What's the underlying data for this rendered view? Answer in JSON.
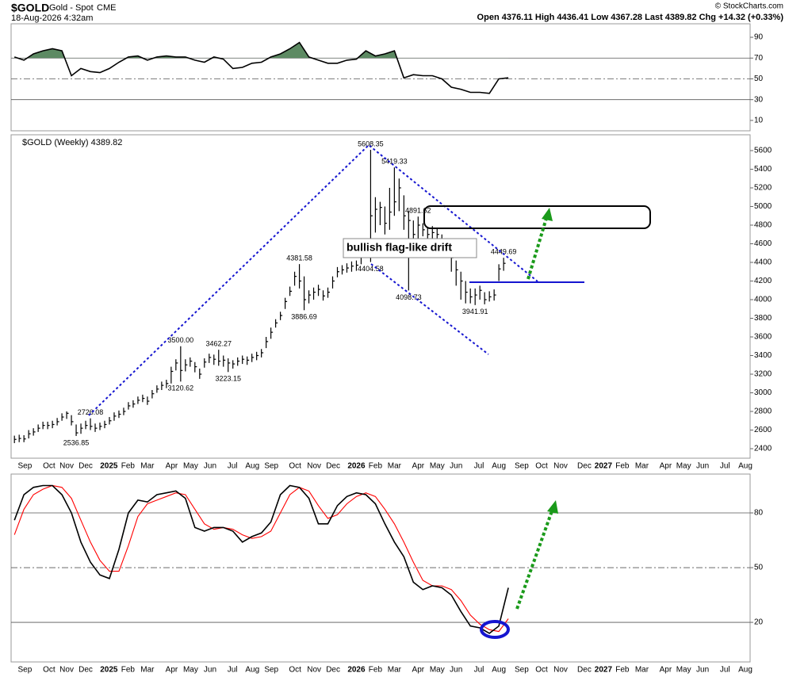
{
  "header": {
    "symbol": "$GOLD",
    "name": "Gold - Spot",
    "exchange": "CME",
    "datetime": "18-Aug-2026 4:32am",
    "quote": "Open 4376.11  High 4436.41  Low 4367.28  Last 4389.82  Chg +14.32 (+0.33%)",
    "copyright": "© StockCharts.com"
  },
  "chart_data": [
    {
      "type": "line",
      "xlim": [
        -0.7,
        154.9
      ],
      "ylim": [
        0,
        103
      ],
      "yticks": [
        10,
        30,
        50,
        70,
        90
      ],
      "ref_lines": [
        {
          "value": 70,
          "dash": false
        },
        {
          "value": 50,
          "dash": true
        },
        {
          "value": 30,
          "dash": false
        }
      ],
      "fill_above": 70,
      "fill_color": "#5d8a63",
      "x": [
        0,
        2,
        4,
        6,
        8,
        10,
        12,
        14,
        16,
        18,
        20,
        22,
        24,
        26,
        28,
        30,
        32,
        34,
        36,
        38,
        40,
        42,
        44,
        46,
        48,
        50,
        52,
        54,
        56,
        58,
        60,
        62,
        64,
        66,
        68,
        70,
        72,
        74,
        76,
        78,
        80,
        82,
        84,
        86,
        88,
        90,
        92,
        94,
        96,
        98,
        100,
        102,
        104
      ],
      "series": [
        {
          "color": "#000000",
          "values": [
            71,
            68,
            74,
            77,
            79,
            77,
            53,
            60,
            57,
            56,
            60,
            66,
            71,
            72,
            68,
            71,
            72,
            71,
            71,
            68,
            66,
            71,
            69,
            60,
            61,
            65,
            66,
            71,
            74,
            79,
            85,
            71,
            68,
            65,
            65,
            68,
            69,
            77,
            72,
            74,
            77,
            51,
            54,
            53,
            53,
            50,
            42,
            40,
            37,
            37,
            36,
            50,
            51
          ]
        }
      ]
    },
    {
      "type": "ohlc",
      "title": "$GOLD (Weekly) 4389.82",
      "color": "#000000",
      "xlim": [
        -0.7,
        154.9
      ],
      "ylim": [
        2298,
        5770
      ],
      "yticks": [
        2400,
        2600,
        2800,
        3000,
        3200,
        3400,
        3600,
        3800,
        4000,
        4200,
        4400,
        4600,
        4800,
        5000,
        5200,
        5400,
        5600
      ],
      "xticks": [
        {
          "value": 2.2,
          "label": "Sep"
        },
        {
          "value": 7.3,
          "label": "Oct"
        },
        {
          "value": 11.0,
          "label": "Nov"
        },
        {
          "value": 15.0,
          "label": "Dec"
        },
        {
          "value": 19.9,
          "label": "2025"
        },
        {
          "value": 23.9,
          "label": "Feb"
        },
        {
          "value": 28.0,
          "label": "Mar"
        },
        {
          "value": 33.1,
          "label": "Apr"
        },
        {
          "value": 37.1,
          "label": "May"
        },
        {
          "value": 41.2,
          "label": "Jun"
        },
        {
          "value": 45.9,
          "label": "Jul"
        },
        {
          "value": 50.1,
          "label": "Aug"
        },
        {
          "value": 54.1,
          "label": "Sep"
        },
        {
          "value": 59.1,
          "label": "Oct"
        },
        {
          "value": 63.1,
          "label": "Nov"
        },
        {
          "value": 67.1,
          "label": "Dec"
        },
        {
          "value": 72.0,
          "label": "2026"
        },
        {
          "value": 76.0,
          "label": "Feb"
        },
        {
          "value": 80.0,
          "label": "Mar"
        },
        {
          "value": 85.0,
          "label": "Apr"
        },
        {
          "value": 89.0,
          "label": "May"
        },
        {
          "value": 93.0,
          "label": "Jun"
        },
        {
          "value": 97.8,
          "label": "Jul"
        },
        {
          "value": 102.0,
          "label": "Aug"
        },
        {
          "value": 106.8,
          "label": "Sep"
        },
        {
          "value": 111.0,
          "label": "Oct"
        },
        {
          "value": 115.0,
          "label": "Nov"
        },
        {
          "value": 120.0,
          "label": "Dec"
        },
        {
          "value": 124.0,
          "label": "2027"
        },
        {
          "value": 128.0,
          "label": "Feb"
        },
        {
          "value": 132.1,
          "label": "Mar"
        },
        {
          "value": 137.1,
          "label": "Apr"
        },
        {
          "value": 140.9,
          "label": "May"
        },
        {
          "value": 144.9,
          "label": "Jun"
        },
        {
          "value": 149.6,
          "label": "Jul"
        },
        {
          "value": 153.9,
          "label": "Aug"
        }
      ],
      "high": [
        2540,
        2550,
        2545,
        2600,
        2620,
        2660,
        2690,
        2690,
        2700,
        2730,
        2780,
        2800,
        2760,
        2660,
        2670,
        2700,
        2726.08,
        2670,
        2680,
        2700,
        2740,
        2790,
        2810,
        2840,
        2900,
        2920,
        2960,
        2980,
        2960,
        3030,
        3080,
        3120,
        3140,
        3280,
        3360,
        3500,
        3360,
        3380,
        3330,
        3260,
        3370,
        3420,
        3410,
        3462.27,
        3400,
        3370,
        3350,
        3380,
        3400,
        3390,
        3420,
        3440,
        3470,
        3600,
        3700,
        3790,
        3870,
        4020,
        4140,
        4300,
        4381.58,
        4250,
        4100,
        4130,
        4160,
        4100,
        4130,
        4250,
        4350,
        4370,
        4390,
        4410,
        4420,
        4510,
        4620,
        5608.35,
        5100,
        5050,
        5000,
        5200,
        5419.33,
        5300,
        5120,
        4950,
        4850,
        4891.62,
        4820,
        4780,
        4790,
        4770,
        4700,
        4650,
        4550,
        4420,
        4300,
        4200,
        4120,
        4120,
        4150,
        4080,
        4090,
        4110,
        4380,
        4449.69
      ],
      "low": [
        2460,
        2470,
        2470,
        2510,
        2540,
        2580,
        2610,
        2610,
        2620,
        2650,
        2700,
        2720,
        2650,
        2536.85,
        2560,
        2610,
        2600,
        2580,
        2600,
        2620,
        2660,
        2700,
        2730,
        2760,
        2820,
        2840,
        2880,
        2900,
        2870,
        2940,
        3000,
        3030,
        3050,
        3100,
        3240,
        3120.62,
        3230,
        3280,
        3220,
        3150,
        3270,
        3320,
        3300,
        3290,
        3280,
        3223.15,
        3260,
        3290,
        3310,
        3300,
        3330,
        3350,
        3380,
        3480,
        3580,
        3700,
        3780,
        3900,
        4040,
        4150,
        4120,
        3886.69,
        3960,
        4000,
        4040,
        3990,
        4020,
        4120,
        4240,
        4270,
        4290,
        4300,
        4310,
        4380,
        4470,
        4404.58,
        4720,
        4800,
        4700,
        4750,
        4900,
        4950,
        4750,
        4098.73,
        4580,
        4650,
        4680,
        4640,
        4650,
        4620,
        4540,
        4470,
        4300,
        4150,
        4000,
        3960,
        3960,
        3941.91,
        4000,
        3950,
        3980,
        3990,
        4200,
        4310
      ],
      "close": [
        2500,
        2510,
        2505,
        2560,
        2580,
        2620,
        2650,
        2650,
        2660,
        2690,
        2740,
        2780,
        2690,
        2570,
        2620,
        2650,
        2640,
        2620,
        2640,
        2660,
        2700,
        2750,
        2770,
        2800,
        2860,
        2880,
        2920,
        2940,
        2910,
        2990,
        3040,
        3080,
        3100,
        3230,
        3320,
        3240,
        3300,
        3340,
        3280,
        3200,
        3330,
        3380,
        3360,
        3340,
        3350,
        3320,
        3310,
        3340,
        3360,
        3350,
        3380,
        3400,
        3430,
        3550,
        3650,
        3750,
        3830,
        3980,
        4090,
        4250,
        4200,
        4000,
        4050,
        4080,
        4110,
        4040,
        4080,
        4200,
        4300,
        4320,
        4340,
        4360,
        4370,
        4460,
        4550,
        4900,
        4970,
        4990,
        4820,
        4940,
        5050,
        5200,
        4900,
        4850,
        4700,
        4800,
        4750,
        4700,
        4720,
        4700,
        4640,
        4560,
        4450,
        4320,
        4200,
        4080,
        4030,
        4050,
        4100,
        4000,
        4030,
        4050,
        4330,
        4390
      ],
      "annotations": [
        {
          "x": 13,
          "value": 2536.85,
          "label": "2536.85"
        },
        {
          "x": 16,
          "value": 2726.08,
          "label": "2726.08"
        },
        {
          "x": 35,
          "value": 3500,
          "label": "3500.00"
        },
        {
          "x": 35,
          "value": 3120.62,
          "label": "3120.62"
        },
        {
          "x": 43,
          "value": 3462.27,
          "label": "3462.27"
        },
        {
          "x": 45,
          "value": 3223.15,
          "label": "3223.15"
        },
        {
          "x": 60,
          "value": 4381.58,
          "label": "4381.58"
        },
        {
          "x": 61,
          "value": 3886.69,
          "label": "3886.69"
        },
        {
          "x": 75,
          "value": 5608.35,
          "label": "5608.35"
        },
        {
          "x": 80,
          "value": 5419.33,
          "label": "5419.33"
        },
        {
          "x": 75,
          "value": 4404.58,
          "label": "4404.58"
        },
        {
          "x": 85,
          "value": 4891.62,
          "label": "4891.62"
        },
        {
          "x": 83,
          "value": 4098.73,
          "label": "4098.73"
        },
        {
          "x": 97,
          "value": 3941.91,
          "label": "3941.91"
        },
        {
          "x": 103,
          "value": 4449.69,
          "label": "4449.69"
        }
      ],
      "note": "bullish flag-like drift"
    },
    {
      "type": "line",
      "xlim": [
        -0.7,
        154.9
      ],
      "ylim": [
        -1.7,
        101.3
      ],
      "yticks": [
        20,
        50,
        80
      ],
      "ref_lines": [
        {
          "value": 80,
          "dash": false
        },
        {
          "value": 50,
          "dash": true
        },
        {
          "value": 20,
          "dash": false
        }
      ],
      "x": [
        0,
        2,
        4,
        6,
        8,
        10,
        12,
        14,
        16,
        18,
        20,
        22,
        24,
        26,
        28,
        30,
        32,
        34,
        36,
        38,
        40,
        42,
        44,
        46,
        48,
        50,
        52,
        54,
        56,
        58,
        60,
        62,
        64,
        66,
        68,
        70,
        72,
        74,
        76,
        78,
        80,
        82,
        84,
        86,
        88,
        90,
        92,
        94,
        96,
        98,
        100,
        102,
        104
      ],
      "series": [
        {
          "color": "#ff0000",
          "values": [
            68,
            82,
            90,
            93,
            95,
            94,
            88,
            76,
            64,
            54,
            48,
            48,
            62,
            78,
            85,
            87,
            89,
            91,
            90,
            82,
            74,
            71,
            72,
            71,
            68,
            66,
            67,
            70,
            80,
            90,
            94,
            92,
            84,
            77,
            79,
            85,
            89,
            91,
            89,
            82,
            74,
            64,
            53,
            43,
            40,
            40,
            38,
            32,
            24,
            19,
            16,
            15,
            22
          ]
        },
        {
          "color": "#000000",
          "values": [
            76,
            90,
            94,
            95,
            95,
            90,
            80,
            64,
            53,
            46,
            44,
            60,
            80,
            87,
            86,
            90,
            91,
            92,
            88,
            72,
            70,
            72,
            72,
            70,
            64,
            67,
            69,
            75,
            90,
            95,
            94,
            88,
            74,
            74,
            84,
            89,
            91,
            90,
            85,
            74,
            64,
            56,
            42,
            38,
            40,
            39,
            35,
            26,
            18,
            17,
            14,
            18,
            39
          ]
        }
      ]
    }
  ]
}
